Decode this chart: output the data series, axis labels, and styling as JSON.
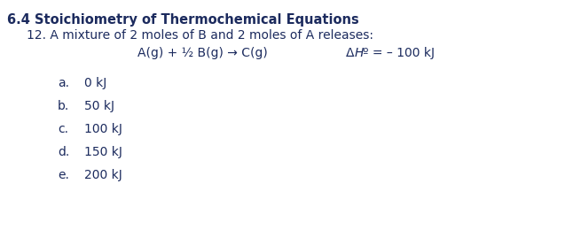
{
  "title": "6.4 Stoichiometry of Thermochemical Equations",
  "subtitle": "12. A mixture of 2 moles of B and 2 moles of A releases:",
  "equation": "A(g) + ½ B(g) → C(g)",
  "delta_h": "Δℎº = – 100 kJ",
  "delta_h_display": "ΔHº = – 100 kJ",
  "choices_labels": [
    "a.",
    "b.",
    "c.",
    "d.",
    "e."
  ],
  "choices_values": [
    "0 kJ",
    "50 kJ",
    "100 kJ",
    "150 kJ",
    "200 kJ"
  ],
  "bg_color": "#ffffff",
  "text_color": "#1c2b5e",
  "title_fontsize": 10.5,
  "body_fontsize": 10,
  "fig_width": 6.46,
  "fig_height": 2.77,
  "dpi": 100
}
